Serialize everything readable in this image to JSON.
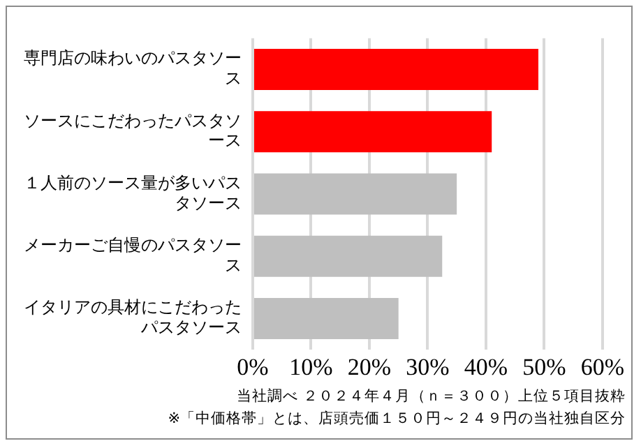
{
  "chart_data": {
    "type": "bar",
    "orientation": "horizontal",
    "categories": [
      "専門店の味わいのパスタソース",
      "ソースにこだわったパスタソース",
      "１人前のソース量が多いパスタソース",
      "メーカーご自慢のパスタソース",
      "イタリアの具材にこだわったパスタソース"
    ],
    "values": [
      49,
      41,
      35,
      32.5,
      25
    ],
    "colors": [
      "#ff0000",
      "#ff0000",
      "#bfbfbf",
      "#bfbfbf",
      "#bfbfbf"
    ],
    "xlim": [
      0,
      60
    ],
    "xticks": [
      {
        "value": 0,
        "label": "0%"
      },
      {
        "value": 10,
        "label": "10%"
      },
      {
        "value": 20,
        "label": "20%"
      },
      {
        "value": 30,
        "label": "30%"
      },
      {
        "value": 40,
        "label": "40%"
      },
      {
        "value": 50,
        "label": "50%"
      },
      {
        "value": 60,
        "label": "60%"
      }
    ],
    "grid": "x",
    "annotations": [
      "当社調べ ２０２４年４月（ｎ＝３００）上位５項目抜粋",
      "※「中価格帯」とは、店頭売価１５０円～２４９円の当社独自区分"
    ]
  }
}
